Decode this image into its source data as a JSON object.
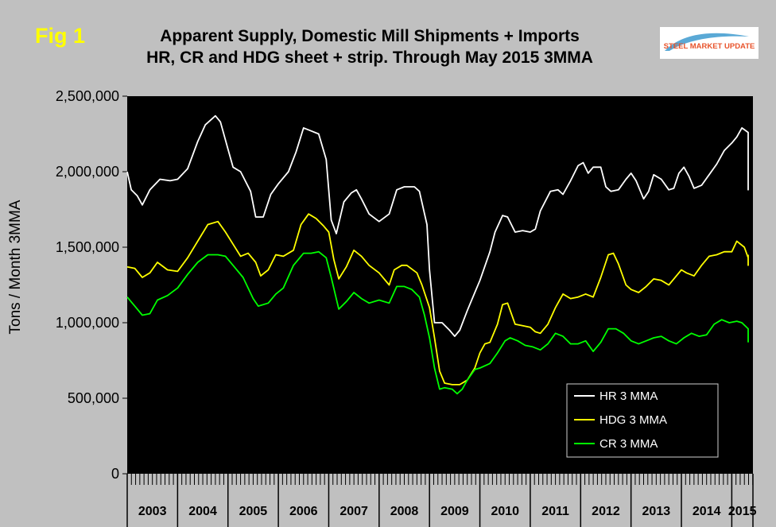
{
  "figure": {
    "label": "Fig 1",
    "title_line1": "Apparent Supply, Domestic Mill Shipments + Imports",
    "title_line2": "HR, CR and HDG sheet + strip. Through May 2015 3MMA"
  },
  "logo": {
    "text": "STEEL MARKET UPDATE",
    "color": "#e8532b"
  },
  "colors": {
    "plot_bg": "#000000",
    "page_bg": "#c0c0c0",
    "hr": "#ffffff",
    "hdg": "#ffff00",
    "cr": "#00ff00"
  },
  "chart_data": {
    "type": "line",
    "ylabel": "Tons / Month 3MMA",
    "ylim": [
      0,
      2500000
    ],
    "yticks": [
      0,
      500000,
      1000000,
      1500000,
      2000000,
      2500000
    ],
    "ytick_labels": [
      "0",
      "500,000",
      "1,000,000",
      "1,500,000",
      "2,000,000",
      "2,500,000"
    ],
    "xlim": [
      2003.0,
      2015.42
    ],
    "years": [
      "2003",
      "2004",
      "2005",
      "2006",
      "2007",
      "2008",
      "2009",
      "2010",
      "2011",
      "2012",
      "2013",
      "2014",
      "2015"
    ],
    "grid": false,
    "legend_position": "bottom-right",
    "series": [
      {
        "name": "HR 3 MMA",
        "color": "#ffffff",
        "points": [
          [
            2003.0,
            2000000
          ],
          [
            2003.08,
            1880000
          ],
          [
            2003.2,
            1840000
          ],
          [
            2003.3,
            1780000
          ],
          [
            2003.45,
            1880000
          ],
          [
            2003.65,
            1950000
          ],
          [
            2003.85,
            1940000
          ],
          [
            2004.0,
            1950000
          ],
          [
            2004.2,
            2020000
          ],
          [
            2004.4,
            2200000
          ],
          [
            2004.55,
            2310000
          ],
          [
            2004.75,
            2370000
          ],
          [
            2004.85,
            2330000
          ],
          [
            2005.0,
            2150000
          ],
          [
            2005.1,
            2030000
          ],
          [
            2005.25,
            2000000
          ],
          [
            2005.45,
            1870000
          ],
          [
            2005.55,
            1700000
          ],
          [
            2005.7,
            1700000
          ],
          [
            2005.85,
            1850000
          ],
          [
            2006.0,
            1920000
          ],
          [
            2006.2,
            2000000
          ],
          [
            2006.35,
            2130000
          ],
          [
            2006.5,
            2290000
          ],
          [
            2006.65,
            2270000
          ],
          [
            2006.8,
            2250000
          ],
          [
            2006.95,
            2080000
          ],
          [
            2007.05,
            1680000
          ],
          [
            2007.15,
            1590000
          ],
          [
            2007.3,
            1800000
          ],
          [
            2007.45,
            1860000
          ],
          [
            2007.55,
            1880000
          ],
          [
            2007.65,
            1820000
          ],
          [
            2007.8,
            1720000
          ],
          [
            2008.0,
            1670000
          ],
          [
            2008.2,
            1720000
          ],
          [
            2008.35,
            1880000
          ],
          [
            2008.5,
            1900000
          ],
          [
            2008.7,
            1900000
          ],
          [
            2008.8,
            1870000
          ],
          [
            2008.95,
            1650000
          ],
          [
            2009.0,
            1350000
          ],
          [
            2009.1,
            1000000
          ],
          [
            2009.25,
            1000000
          ],
          [
            2009.4,
            950000
          ],
          [
            2009.5,
            910000
          ],
          [
            2009.6,
            950000
          ],
          [
            2009.75,
            1080000
          ],
          [
            2009.9,
            1200000
          ],
          [
            2010.0,
            1280000
          ],
          [
            2010.2,
            1470000
          ],
          [
            2010.3,
            1600000
          ],
          [
            2010.45,
            1710000
          ],
          [
            2010.55,
            1700000
          ],
          [
            2010.7,
            1600000
          ],
          [
            2010.85,
            1610000
          ],
          [
            2011.0,
            1600000
          ],
          [
            2011.1,
            1620000
          ],
          [
            2011.2,
            1740000
          ],
          [
            2011.4,
            1870000
          ],
          [
            2011.55,
            1880000
          ],
          [
            2011.65,
            1850000
          ],
          [
            2011.8,
            1940000
          ],
          [
            2011.95,
            2040000
          ],
          [
            2012.05,
            2060000
          ],
          [
            2012.15,
            1990000
          ],
          [
            2012.25,
            2030000
          ],
          [
            2012.4,
            2030000
          ],
          [
            2012.5,
            1900000
          ],
          [
            2012.6,
            1870000
          ],
          [
            2012.75,
            1880000
          ],
          [
            2012.9,
            1950000
          ],
          [
            2013.0,
            1990000
          ],
          [
            2013.1,
            1940000
          ],
          [
            2013.25,
            1820000
          ],
          [
            2013.35,
            1870000
          ],
          [
            2013.45,
            1980000
          ],
          [
            2013.6,
            1950000
          ],
          [
            2013.75,
            1880000
          ],
          [
            2013.85,
            1890000
          ],
          [
            2013.95,
            1990000
          ],
          [
            2014.05,
            2030000
          ],
          [
            2014.15,
            1970000
          ],
          [
            2014.25,
            1890000
          ],
          [
            2014.4,
            1910000
          ],
          [
            2014.55,
            1980000
          ],
          [
            2014.7,
            2050000
          ],
          [
            2014.85,
            2140000
          ],
          [
            2015.0,
            2190000
          ],
          [
            2015.1,
            2230000
          ],
          [
            2015.2,
            2290000
          ],
          [
            2015.35,
            2260000
          ],
          [
            2015.5,
            2150000
          ],
          [
            2015.6,
            2030000
          ],
          [
            2015.75,
            1880000
          ],
          [
            2015.9,
            1920000
          ]
        ]
      },
      {
        "name": "HDG 3 MMA",
        "color": "#ffff00",
        "points": [
          [
            2003.0,
            1370000
          ],
          [
            2003.15,
            1360000
          ],
          [
            2003.3,
            1300000
          ],
          [
            2003.45,
            1330000
          ],
          [
            2003.6,
            1400000
          ],
          [
            2003.8,
            1350000
          ],
          [
            2004.0,
            1340000
          ],
          [
            2004.2,
            1430000
          ],
          [
            2004.4,
            1540000
          ],
          [
            2004.6,
            1650000
          ],
          [
            2004.8,
            1670000
          ],
          [
            2004.95,
            1600000
          ],
          [
            2005.1,
            1520000
          ],
          [
            2005.25,
            1440000
          ],
          [
            2005.4,
            1460000
          ],
          [
            2005.55,
            1400000
          ],
          [
            2005.65,
            1310000
          ],
          [
            2005.8,
            1350000
          ],
          [
            2005.95,
            1450000
          ],
          [
            2006.1,
            1440000
          ],
          [
            2006.3,
            1480000
          ],
          [
            2006.45,
            1650000
          ],
          [
            2006.6,
            1720000
          ],
          [
            2006.75,
            1690000
          ],
          [
            2006.9,
            1640000
          ],
          [
            2007.0,
            1600000
          ],
          [
            2007.1,
            1420000
          ],
          [
            2007.2,
            1290000
          ],
          [
            2007.35,
            1370000
          ],
          [
            2007.5,
            1480000
          ],
          [
            2007.65,
            1440000
          ],
          [
            2007.8,
            1380000
          ],
          [
            2008.0,
            1330000
          ],
          [
            2008.2,
            1250000
          ],
          [
            2008.3,
            1350000
          ],
          [
            2008.45,
            1380000
          ],
          [
            2008.55,
            1380000
          ],
          [
            2008.75,
            1330000
          ],
          [
            2008.85,
            1250000
          ],
          [
            2009.0,
            1100000
          ],
          [
            2009.1,
            900000
          ],
          [
            2009.2,
            680000
          ],
          [
            2009.3,
            600000
          ],
          [
            2009.45,
            590000
          ],
          [
            2009.6,
            590000
          ],
          [
            2009.75,
            620000
          ],
          [
            2009.9,
            700000
          ],
          [
            2010.0,
            800000
          ],
          [
            2010.1,
            860000
          ],
          [
            2010.2,
            870000
          ],
          [
            2010.35,
            990000
          ],
          [
            2010.45,
            1120000
          ],
          [
            2010.55,
            1130000
          ],
          [
            2010.7,
            990000
          ],
          [
            2010.85,
            980000
          ],
          [
            2011.0,
            970000
          ],
          [
            2011.1,
            940000
          ],
          [
            2011.2,
            930000
          ],
          [
            2011.35,
            990000
          ],
          [
            2011.5,
            1100000
          ],
          [
            2011.65,
            1190000
          ],
          [
            2011.8,
            1160000
          ],
          [
            2011.95,
            1170000
          ],
          [
            2012.1,
            1190000
          ],
          [
            2012.25,
            1170000
          ],
          [
            2012.4,
            1300000
          ],
          [
            2012.55,
            1450000
          ],
          [
            2012.65,
            1460000
          ],
          [
            2012.75,
            1390000
          ],
          [
            2012.9,
            1250000
          ],
          [
            2013.0,
            1220000
          ],
          [
            2013.15,
            1200000
          ],
          [
            2013.3,
            1240000
          ],
          [
            2013.45,
            1290000
          ],
          [
            2013.6,
            1280000
          ],
          [
            2013.75,
            1250000
          ],
          [
            2013.85,
            1290000
          ],
          [
            2014.0,
            1350000
          ],
          [
            2014.1,
            1330000
          ],
          [
            2014.25,
            1310000
          ],
          [
            2014.4,
            1380000
          ],
          [
            2014.55,
            1440000
          ],
          [
            2014.7,
            1450000
          ],
          [
            2014.85,
            1470000
          ],
          [
            2015.0,
            1470000
          ],
          [
            2015.1,
            1540000
          ],
          [
            2015.25,
            1500000
          ],
          [
            2015.35,
            1430000
          ],
          [
            2015.5,
            1380000
          ],
          [
            2015.65,
            1400000
          ],
          [
            2015.8,
            1420000
          ],
          [
            2015.9,
            1450000
          ]
        ]
      },
      {
        "name": "CR 3 MMA",
        "color": "#00ff00",
        "points": [
          [
            2003.0,
            1170000
          ],
          [
            2003.15,
            1110000
          ],
          [
            2003.3,
            1050000
          ],
          [
            2003.45,
            1060000
          ],
          [
            2003.6,
            1150000
          ],
          [
            2003.8,
            1180000
          ],
          [
            2004.0,
            1230000
          ],
          [
            2004.2,
            1320000
          ],
          [
            2004.4,
            1400000
          ],
          [
            2004.6,
            1450000
          ],
          [
            2004.8,
            1450000
          ],
          [
            2004.95,
            1440000
          ],
          [
            2005.1,
            1380000
          ],
          [
            2005.3,
            1300000
          ],
          [
            2005.5,
            1160000
          ],
          [
            2005.6,
            1110000
          ],
          [
            2005.8,
            1130000
          ],
          [
            2005.95,
            1190000
          ],
          [
            2006.1,
            1230000
          ],
          [
            2006.3,
            1380000
          ],
          [
            2006.5,
            1460000
          ],
          [
            2006.65,
            1460000
          ],
          [
            2006.8,
            1470000
          ],
          [
            2006.95,
            1430000
          ],
          [
            2007.05,
            1300000
          ],
          [
            2007.2,
            1090000
          ],
          [
            2007.35,
            1140000
          ],
          [
            2007.5,
            1200000
          ],
          [
            2007.65,
            1160000
          ],
          [
            2007.8,
            1130000
          ],
          [
            2008.0,
            1150000
          ],
          [
            2008.2,
            1130000
          ],
          [
            2008.35,
            1240000
          ],
          [
            2008.5,
            1240000
          ],
          [
            2008.65,
            1220000
          ],
          [
            2008.8,
            1170000
          ],
          [
            2008.9,
            1050000
          ],
          [
            2009.0,
            900000
          ],
          [
            2009.1,
            700000
          ],
          [
            2009.2,
            560000
          ],
          [
            2009.3,
            570000
          ],
          [
            2009.45,
            560000
          ],
          [
            2009.55,
            530000
          ],
          [
            2009.65,
            560000
          ],
          [
            2009.75,
            620000
          ],
          [
            2009.9,
            690000
          ],
          [
            2010.0,
            700000
          ],
          [
            2010.2,
            730000
          ],
          [
            2010.35,
            800000
          ],
          [
            2010.5,
            880000
          ],
          [
            2010.6,
            900000
          ],
          [
            2010.75,
            880000
          ],
          [
            2010.9,
            850000
          ],
          [
            2011.05,
            840000
          ],
          [
            2011.2,
            820000
          ],
          [
            2011.35,
            860000
          ],
          [
            2011.5,
            930000
          ],
          [
            2011.65,
            910000
          ],
          [
            2011.8,
            860000
          ],
          [
            2011.95,
            860000
          ],
          [
            2012.1,
            880000
          ],
          [
            2012.25,
            810000
          ],
          [
            2012.4,
            870000
          ],
          [
            2012.55,
            960000
          ],
          [
            2012.7,
            960000
          ],
          [
            2012.85,
            930000
          ],
          [
            2013.0,
            880000
          ],
          [
            2013.15,
            860000
          ],
          [
            2013.3,
            880000
          ],
          [
            2013.45,
            900000
          ],
          [
            2013.6,
            910000
          ],
          [
            2013.75,
            880000
          ],
          [
            2013.9,
            860000
          ],
          [
            2014.05,
            900000
          ],
          [
            2014.2,
            930000
          ],
          [
            2014.35,
            910000
          ],
          [
            2014.5,
            920000
          ],
          [
            2014.65,
            990000
          ],
          [
            2014.8,
            1020000
          ],
          [
            2014.95,
            1000000
          ],
          [
            2015.1,
            1010000
          ],
          [
            2015.2,
            1000000
          ],
          [
            2015.35,
            960000
          ],
          [
            2015.5,
            910000
          ],
          [
            2015.65,
            890000
          ],
          [
            2015.8,
            870000
          ],
          [
            2015.9,
            870000
          ]
        ]
      }
    ]
  }
}
